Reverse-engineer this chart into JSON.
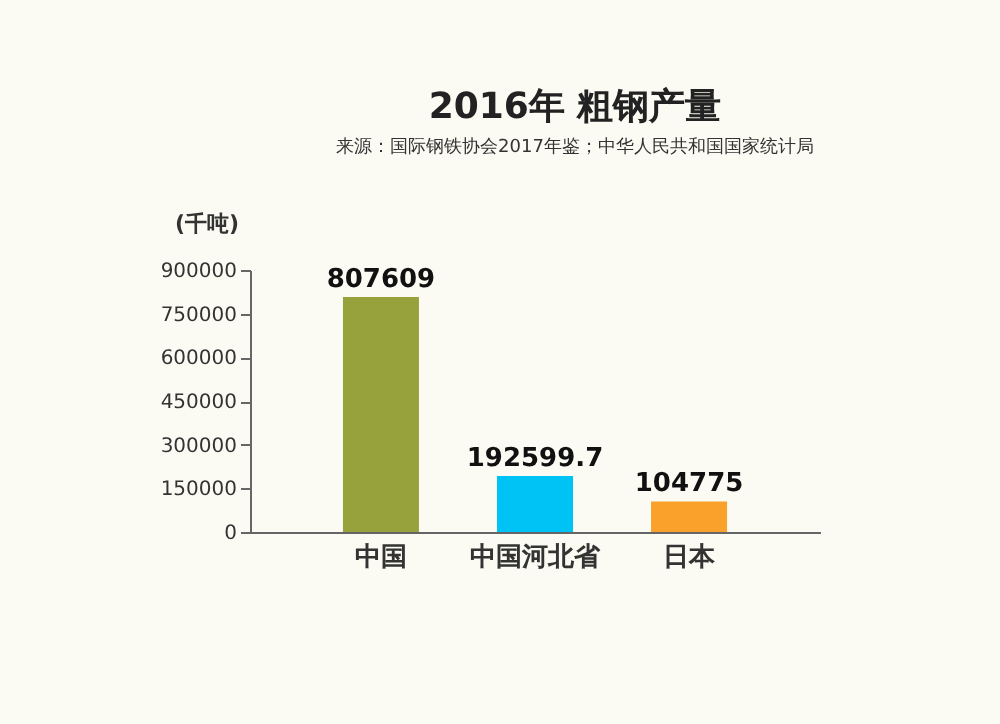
{
  "chart_data": {
    "type": "bar",
    "title": "2016年 粗钢产量",
    "subtitle": "来源：国际钢铁协会2017年鉴；中华人民共和国国家统计局",
    "ylabel": "(千吨)",
    "categories": [
      "中国",
      "中国河北省",
      "日本"
    ],
    "values": [
      807609,
      192599.7,
      104775
    ],
    "colors": [
      "#98a23c",
      "#00c3f5",
      "#f9a12a"
    ],
    "data_labels": true,
    "ylim": [
      0,
      900000
    ],
    "yticks": [
      0,
      150000,
      300000,
      450000,
      600000,
      750000,
      900000
    ],
    "grid": false
  }
}
